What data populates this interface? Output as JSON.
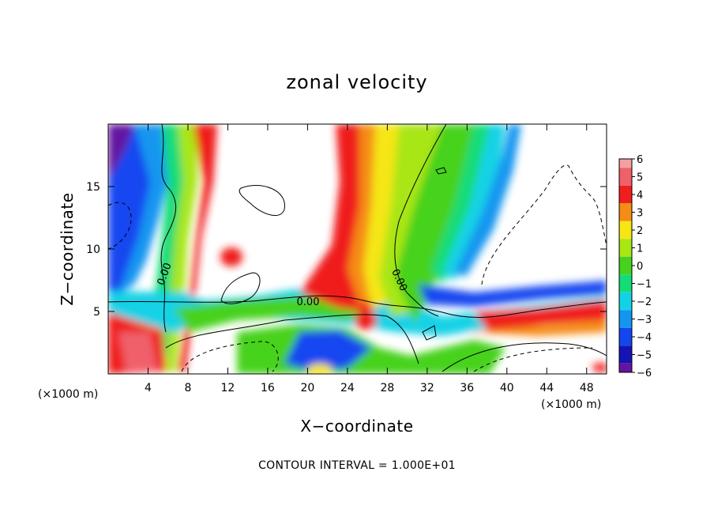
{
  "chart_data": {
    "type": "heatmap",
    "title": "zonal velocity",
    "xlabel": "X−coordinate",
    "ylabel": "Z−coordinate",
    "x_unit": "(×1000 m)",
    "y_unit": "(×1000 m)",
    "xlim": [
      0,
      50
    ],
    "ylim": [
      0,
      20
    ],
    "x_ticks": [
      4,
      8,
      12,
      16,
      20,
      24,
      28,
      32,
      36,
      40,
      44,
      48
    ],
    "y_ticks": [
      5,
      10,
      15
    ],
    "colorbar": {
      "ticks": [
        "6",
        "5",
        "4",
        "3",
        "2",
        "1",
        "0",
        "−1",
        "−2",
        "−3",
        "−4",
        "−5",
        "−6"
      ],
      "range": [
        -6,
        6
      ],
      "levels": [
        {
          "value": 6,
          "color": "#f3a0a0"
        },
        {
          "value": 5,
          "color": "#f0606a"
        },
        {
          "value": 4,
          "color": "#f01e1e"
        },
        {
          "value": 3,
          "color": "#f58c14"
        },
        {
          "value": 2,
          "color": "#f5e614"
        },
        {
          "value": 1,
          "color": "#a8e614"
        },
        {
          "value": 0,
          "color": "#46d21e"
        },
        {
          "value": -1,
          "color": "#14dc78"
        },
        {
          "value": -2,
          "color": "#14d2e6"
        },
        {
          "value": -3,
          "color": "#1496f0"
        },
        {
          "value": -4,
          "color": "#1446f0"
        },
        {
          "value": -5,
          "color": "#1414b4"
        },
        {
          "value": -6,
          "color": "#6414a0"
        }
      ]
    },
    "contour_labels": [
      "0.00",
      "0.00",
      "0.00"
    ],
    "contour_interval_text": "CONTOUR INTERVAL = 1.000E+01"
  }
}
